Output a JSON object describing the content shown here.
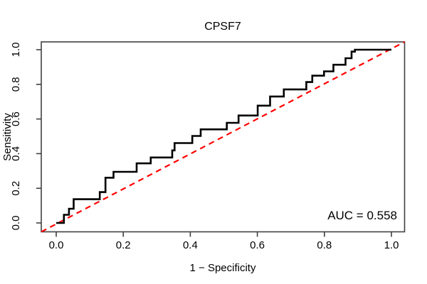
{
  "chart_data": {
    "type": "line",
    "subtype": "roc-curve",
    "title": "CPSF7",
    "xlabel": "1 − Specificity",
    "ylabel": "Sensitivity",
    "annotation": "AUC = 0.558",
    "auc_value": 0.558,
    "xlim": [
      0.0,
      1.0
    ],
    "ylim": [
      0.0,
      1.0
    ],
    "x_ticks": [
      "0.0",
      "0.2",
      "0.4",
      "0.6",
      "0.8",
      "1.0"
    ],
    "y_ticks": [
      "0.0",
      "0.2",
      "0.4",
      "0.6",
      "0.8",
      "1.0"
    ],
    "grid": false,
    "legend_position": "none",
    "background_color": "#ffffff",
    "axis_color": "#404040",
    "text_color": "#000000",
    "curve_color": "#000000",
    "diagonal_color": "#ff0000",
    "diagonal_style": "dashed",
    "series": [
      {
        "name": "ROC curve",
        "color": "#000000",
        "style": "solid",
        "points": [
          [
            0.0,
            0.0
          ],
          [
            0.023,
            0.0
          ],
          [
            0.023,
            0.047
          ],
          [
            0.038,
            0.047
          ],
          [
            0.038,
            0.082
          ],
          [
            0.052,
            0.082
          ],
          [
            0.052,
            0.137
          ],
          [
            0.13,
            0.137
          ],
          [
            0.13,
            0.178
          ],
          [
            0.147,
            0.178
          ],
          [
            0.147,
            0.261
          ],
          [
            0.171,
            0.261
          ],
          [
            0.171,
            0.295
          ],
          [
            0.24,
            0.295
          ],
          [
            0.24,
            0.344
          ],
          [
            0.282,
            0.344
          ],
          [
            0.282,
            0.378
          ],
          [
            0.346,
            0.378
          ],
          [
            0.346,
            0.419
          ],
          [
            0.353,
            0.419
          ],
          [
            0.353,
            0.461
          ],
          [
            0.406,
            0.461
          ],
          [
            0.406,
            0.502
          ],
          [
            0.431,
            0.502
          ],
          [
            0.431,
            0.54
          ],
          [
            0.509,
            0.54
          ],
          [
            0.509,
            0.578
          ],
          [
            0.544,
            0.578
          ],
          [
            0.544,
            0.62
          ],
          [
            0.601,
            0.62
          ],
          [
            0.601,
            0.677
          ],
          [
            0.638,
            0.677
          ],
          [
            0.638,
            0.73
          ],
          [
            0.679,
            0.73
          ],
          [
            0.679,
            0.771
          ],
          [
            0.746,
            0.771
          ],
          [
            0.746,
            0.813
          ],
          [
            0.764,
            0.813
          ],
          [
            0.764,
            0.85
          ],
          [
            0.799,
            0.85
          ],
          [
            0.799,
            0.875
          ],
          [
            0.827,
            0.875
          ],
          [
            0.827,
            0.913
          ],
          [
            0.863,
            0.913
          ],
          [
            0.863,
            0.951
          ],
          [
            0.881,
            0.951
          ],
          [
            0.881,
            0.989
          ],
          [
            0.891,
            0.989
          ],
          [
            0.891,
            1.0
          ],
          [
            1.0,
            1.0
          ]
        ]
      },
      {
        "name": "chance diagonal",
        "color": "#ff0000",
        "style": "dashed",
        "points": [
          [
            0.0,
            0.0
          ],
          [
            1.0,
            1.0
          ]
        ]
      }
    ]
  }
}
